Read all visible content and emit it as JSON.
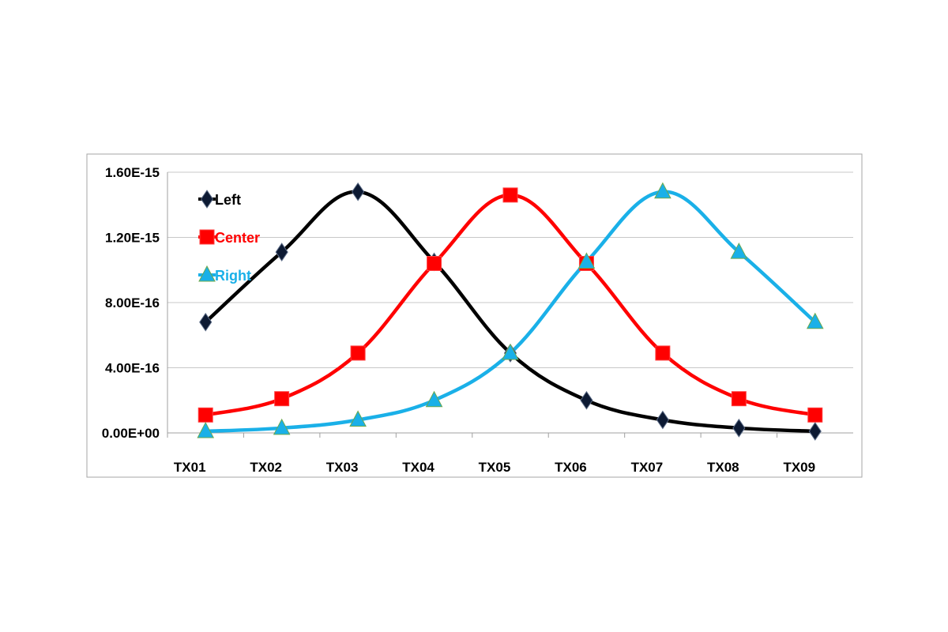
{
  "chart_data": {
    "type": "line",
    "title": "",
    "xlabel": "",
    "ylabel": "",
    "categories": [
      "TX01",
      "TX02",
      "TX03",
      "TX04",
      "TX05",
      "TX06",
      "TX07",
      "TX08",
      "TX09"
    ],
    "ylim": [
      0,
      1.6e-15
    ],
    "y_ticks": [
      {
        "value": 0,
        "label": "0.00E+00"
      },
      {
        "value": 4e-16,
        "label": "4.00E-16"
      },
      {
        "value": 8e-16,
        "label": "8.00E-16"
      },
      {
        "value": 1.2e-15,
        "label": "1.20E-15"
      },
      {
        "value": 1.6e-15,
        "label": "1.60E-15"
      }
    ],
    "grid": true,
    "legend_position": "top-left",
    "smoothed": true,
    "series": [
      {
        "name": "Left",
        "color": "#000000",
        "marker": "diamond",
        "values": [
          6.8e-16,
          1.11e-15,
          1.48e-15,
          1.05e-15,
          4.9e-16,
          2e-16,
          8e-17,
          3e-17,
          1e-17
        ]
      },
      {
        "name": "Center",
        "color": "#ff0000",
        "marker": "square",
        "values": [
          1.1e-16,
          2.1e-16,
          4.9e-16,
          1.04e-15,
          1.46e-15,
          1.04e-15,
          4.9e-16,
          2.1e-16,
          1.1e-16
        ]
      },
      {
        "name": "Right",
        "color": "#1ab0e8",
        "marker": "triangle",
        "values": [
          1e-17,
          3e-17,
          8e-17,
          2e-16,
          4.9e-16,
          1.05e-15,
          1.48e-15,
          1.11e-15,
          6.8e-16
        ]
      }
    ]
  }
}
